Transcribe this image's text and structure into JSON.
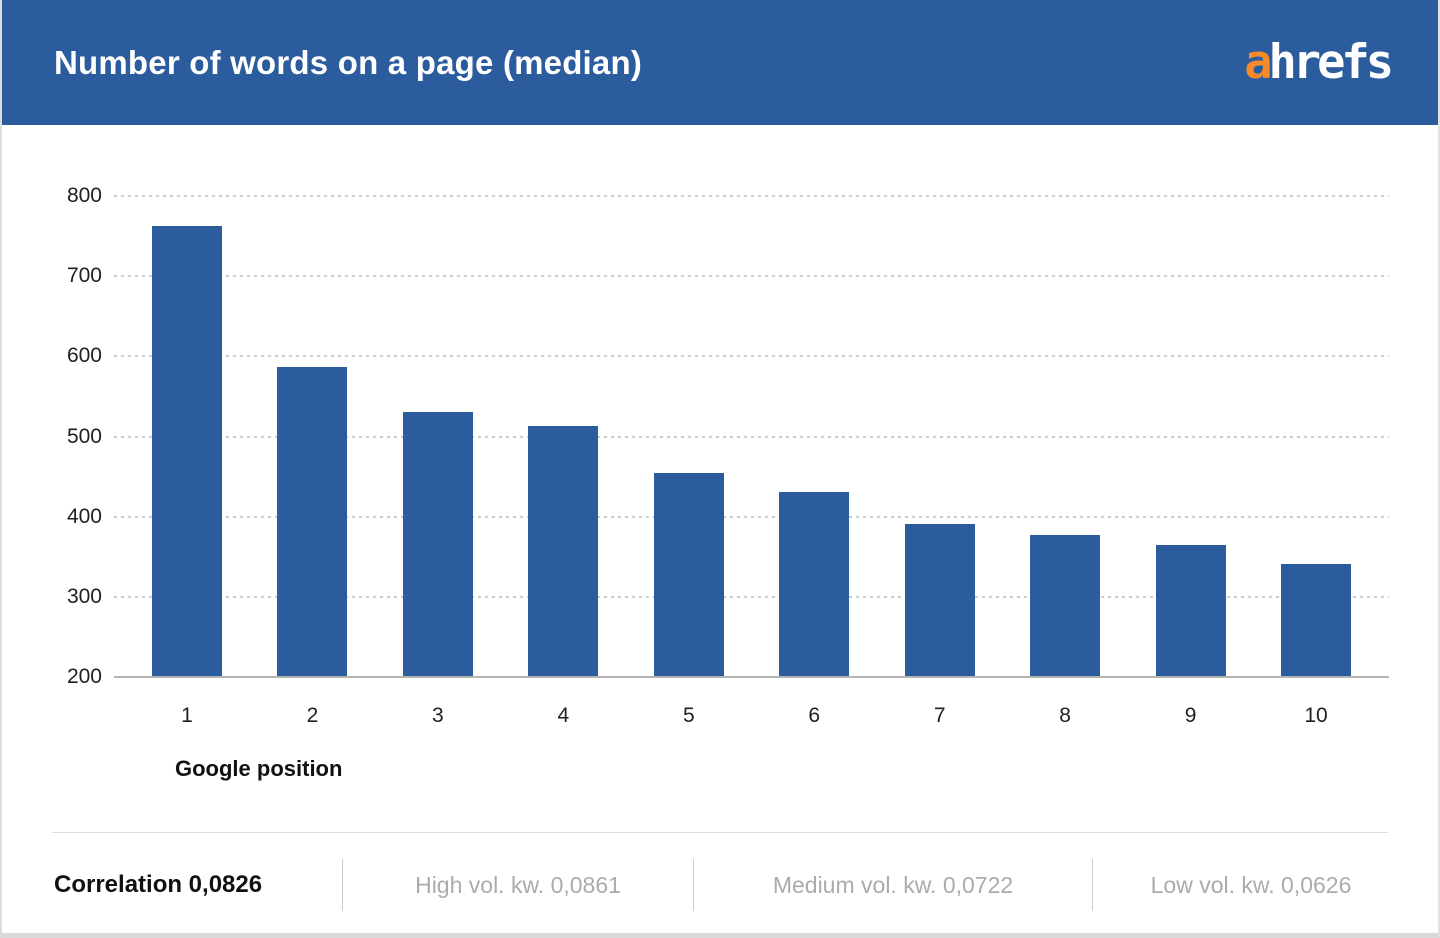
{
  "header": {
    "title": "Number of words on a page (median)",
    "logo": {
      "prefix": "a",
      "rest": "hrefs"
    }
  },
  "chart_data": {
    "type": "bar",
    "title": "Number of words on a page (median)",
    "categories": [
      "1",
      "2",
      "3",
      "4",
      "5",
      "6",
      "7",
      "8",
      "9",
      "10"
    ],
    "values": [
      762,
      587,
      531,
      513,
      454,
      431,
      391,
      377,
      365,
      341
    ],
    "xlabel": "Google position",
    "ylabel": "",
    "ylim": [
      200,
      800
    ],
    "yticks": [
      200,
      300,
      400,
      500,
      600,
      700,
      800
    ],
    "grid": "horizontal-dotted",
    "legend": "none",
    "bar_color": "#2b5c9d"
  },
  "footer": {
    "correlation": "Correlation 0,0826",
    "segments": [
      "High vol. kw. 0,0861",
      "Medium vol. kw. 0,0722",
      "Low vol. kw. 0,0626"
    ]
  },
  "colors": {
    "header_bg": "#2b5c9d",
    "bar": "#2b5c9d",
    "logo_accent": "#f68a2b",
    "footer_muted": "#ababab",
    "gridline": "#cdcdcd",
    "baseline": "#b5b5b5"
  }
}
